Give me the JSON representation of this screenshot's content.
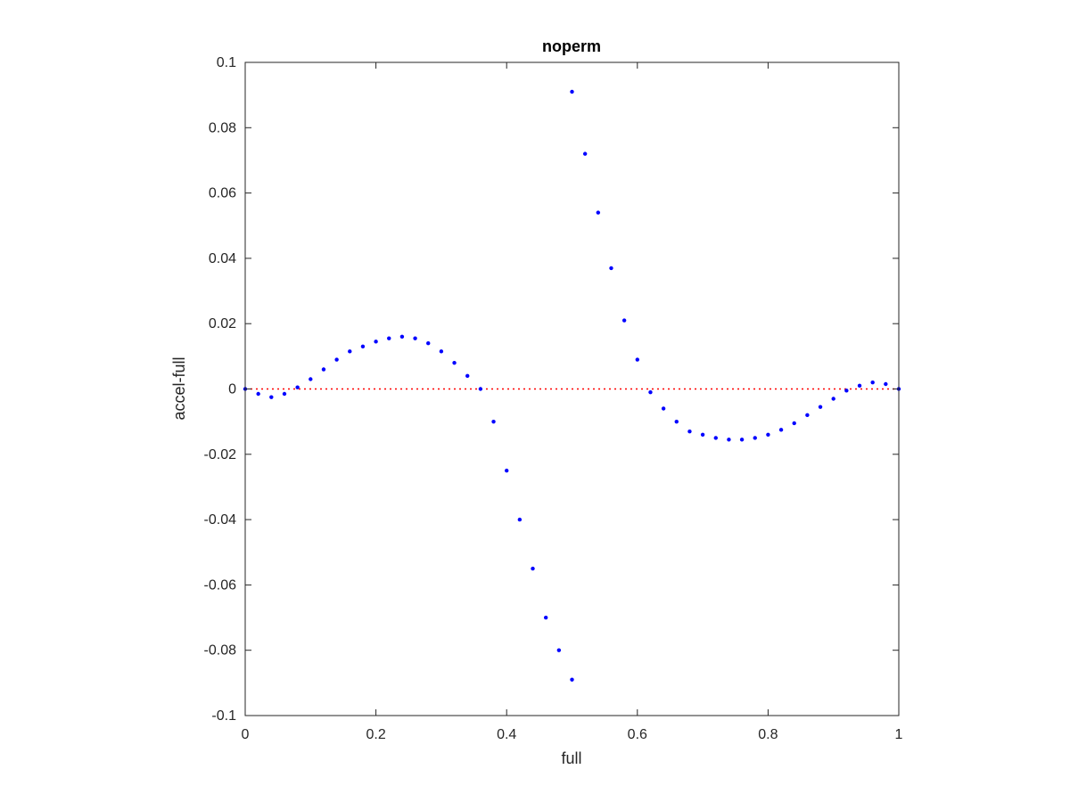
{
  "chart_data": {
    "type": "scatter",
    "title": "noperm",
    "xlabel": "full",
    "ylabel": "accel-full",
    "xlim": [
      0,
      1
    ],
    "ylim": [
      -0.1,
      0.1
    ],
    "xticks": [
      0,
      0.2,
      0.4,
      0.6,
      0.8,
      1
    ],
    "xtick_labels": [
      "0",
      "0.2",
      "0.4",
      "0.6",
      "0.8",
      "1"
    ],
    "yticks": [
      -0.1,
      -0.08,
      -0.06,
      -0.04,
      -0.02,
      0,
      0.02,
      0.04,
      0.06,
      0.08,
      0.1
    ],
    "ytick_labels": [
      "-0.1",
      "-0.08",
      "-0.06",
      "-0.04",
      "-0.02",
      "0",
      "0.02",
      "0.04",
      "0.06",
      "0.08",
      "0.1"
    ],
    "grid": false,
    "reference_line": {
      "y": 0,
      "color": "#ff0000",
      "style": "dotted"
    },
    "series": [
      {
        "color": "#0000ff",
        "marker": "dot",
        "x": [
          0.0,
          0.02,
          0.04,
          0.06,
          0.08,
          0.1,
          0.12,
          0.14,
          0.16,
          0.18,
          0.2,
          0.22,
          0.24,
          0.26,
          0.28,
          0.3,
          0.32,
          0.34,
          0.36,
          0.38,
          0.4,
          0.42,
          0.44,
          0.46,
          0.48,
          0.5,
          0.5,
          0.52,
          0.54,
          0.56,
          0.58,
          0.6,
          0.62,
          0.64,
          0.66,
          0.68,
          0.7,
          0.72,
          0.74,
          0.76,
          0.78,
          0.8,
          0.82,
          0.84,
          0.86,
          0.88,
          0.9,
          0.92,
          0.94,
          0.96,
          0.98,
          1.0
        ],
        "y": [
          0.0,
          -0.0015,
          -0.0025,
          -0.0015,
          0.0005,
          0.003,
          0.006,
          0.009,
          0.0115,
          0.013,
          0.0145,
          0.0155,
          0.016,
          0.0155,
          0.014,
          0.0115,
          0.008,
          0.004,
          0.0,
          -0.01,
          -0.025,
          -0.04,
          -0.055,
          -0.07,
          -0.08,
          -0.089,
          0.091,
          0.072,
          0.054,
          0.037,
          0.021,
          0.009,
          -0.001,
          -0.006,
          -0.01,
          -0.013,
          -0.014,
          -0.015,
          -0.0155,
          -0.0155,
          -0.015,
          -0.014,
          -0.0125,
          -0.0105,
          -0.008,
          -0.0055,
          -0.003,
          -0.0005,
          0.001,
          0.002,
          0.0015,
          0.0
        ]
      }
    ]
  }
}
